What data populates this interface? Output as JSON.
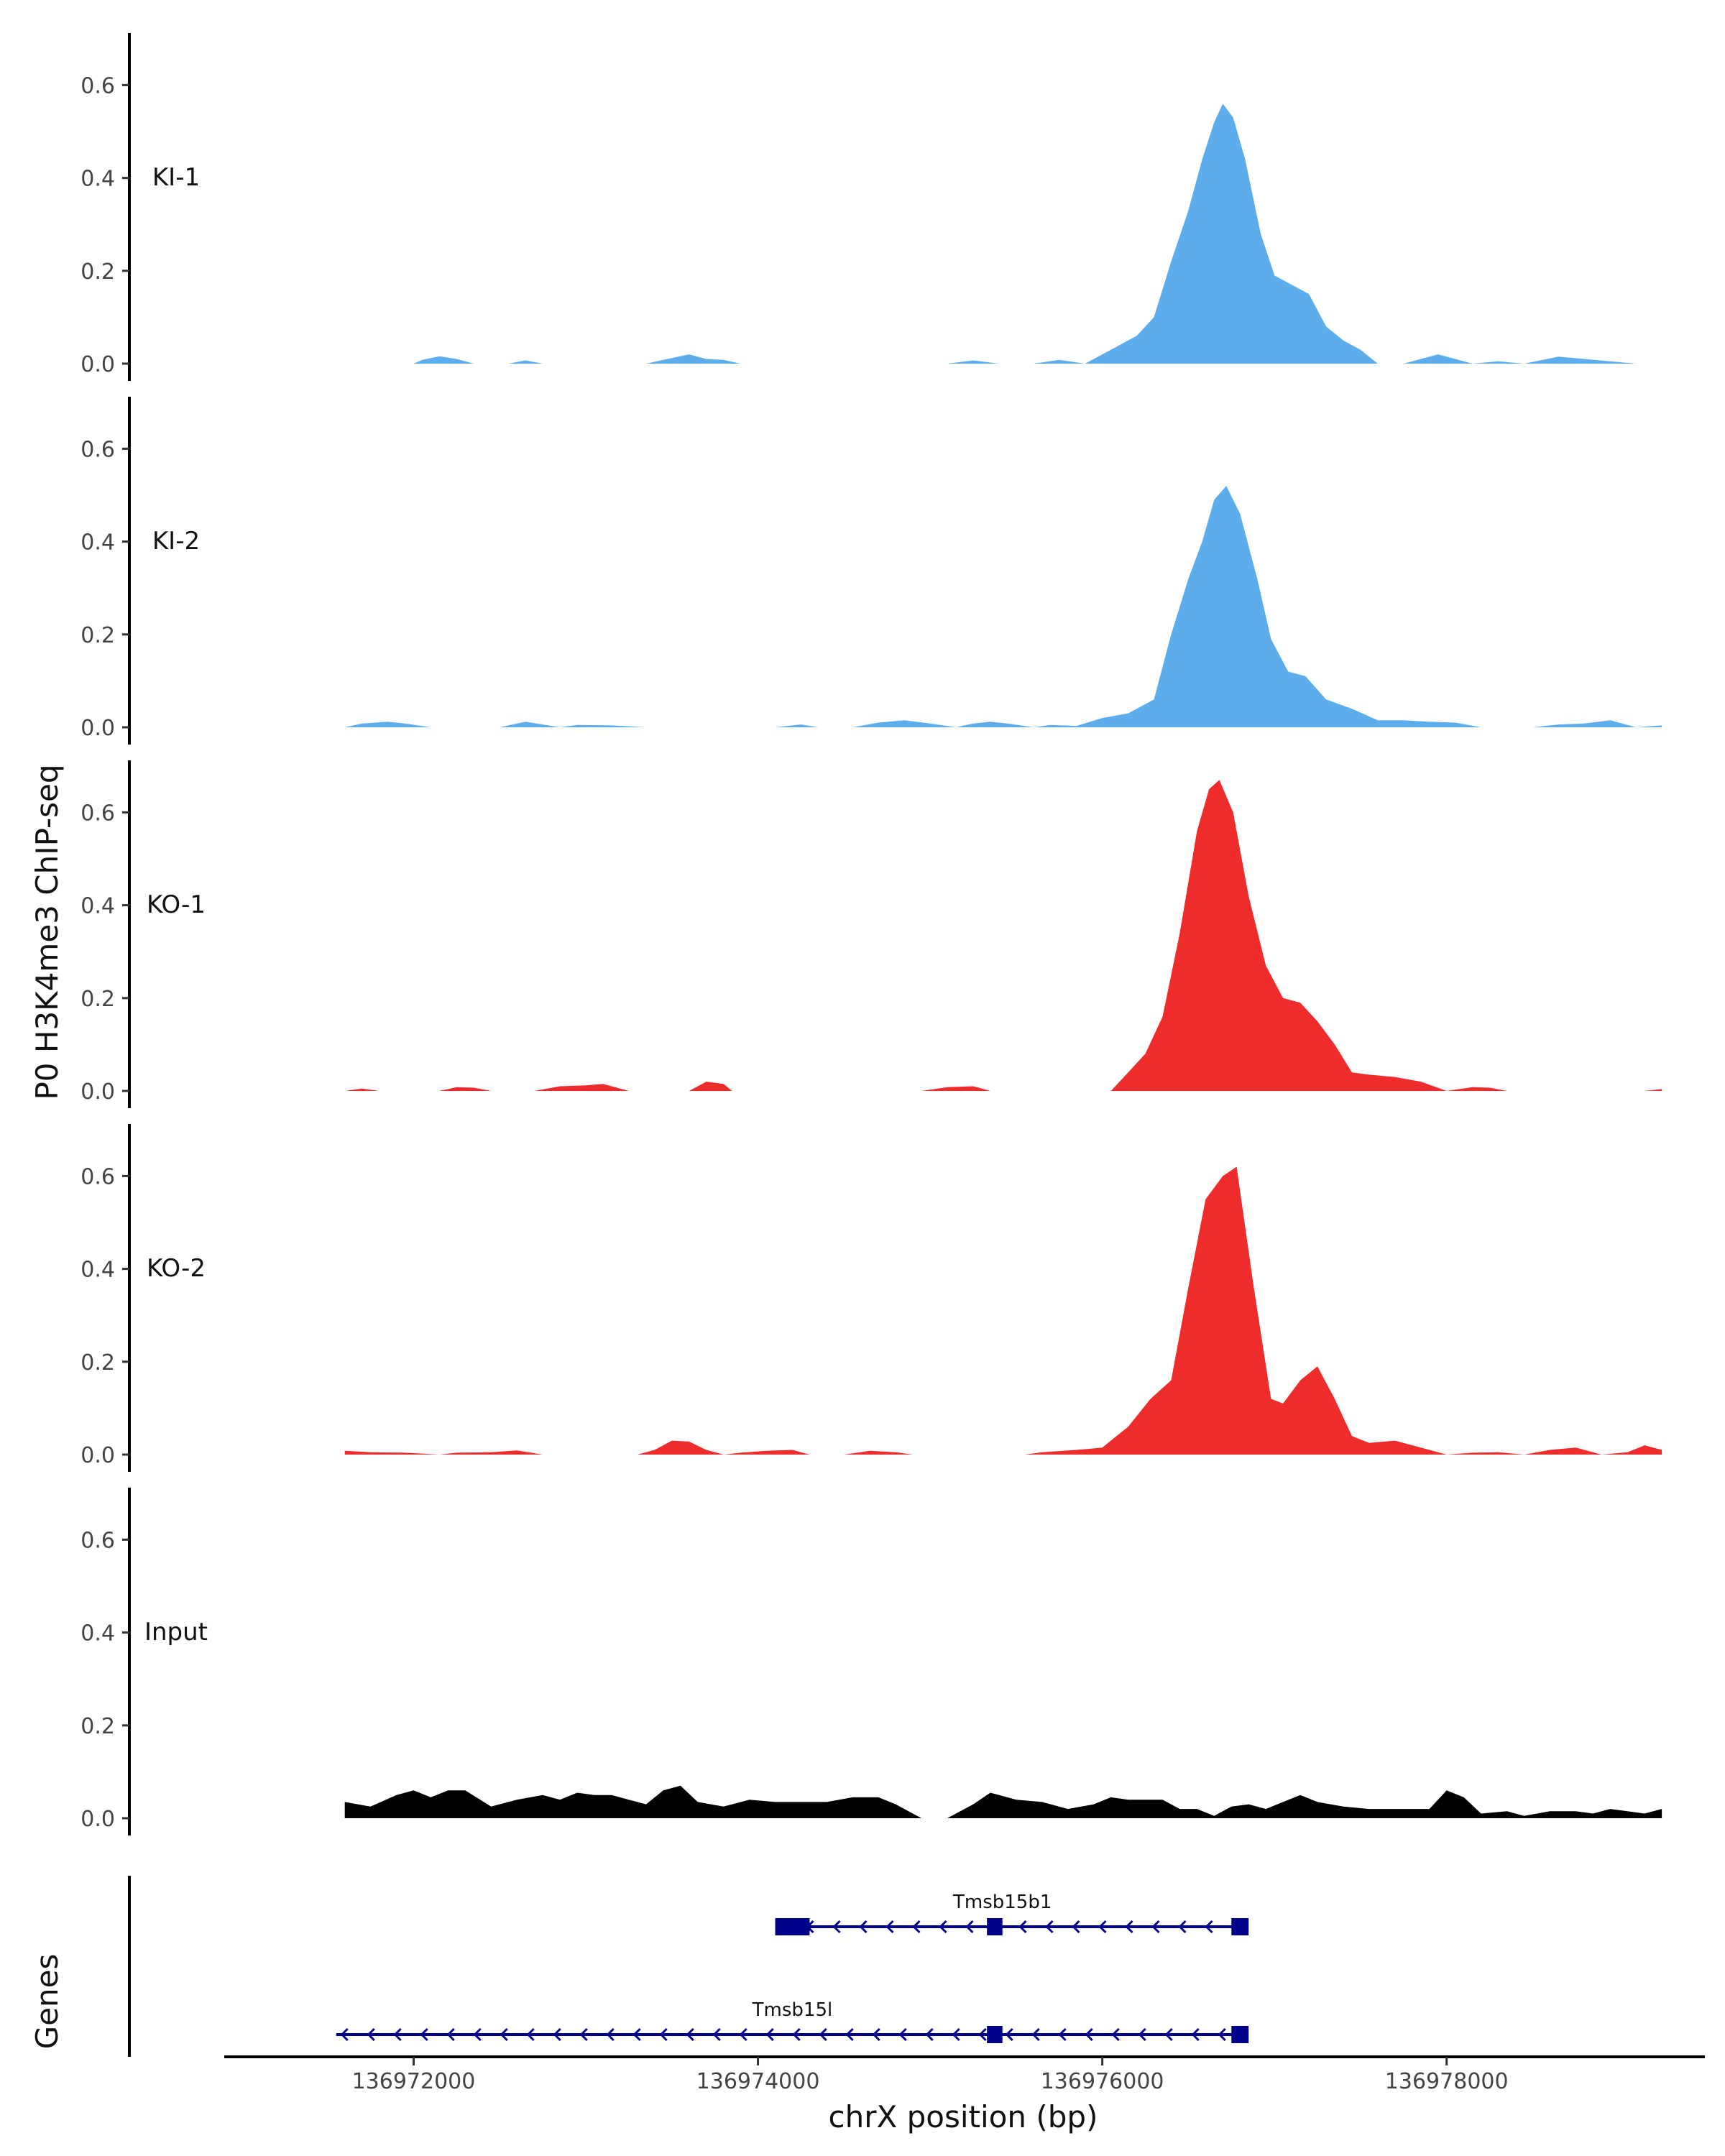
{
  "chart_data": {
    "type": "area",
    "ylabel": "P0 H3K4me3 ChIP-seq",
    "xlabel": "chrX position (bp)",
    "xlim": [
      136970900,
      136979500
    ],
    "ylim": [
      0,
      0.7
    ],
    "yticks": [
      0.0,
      0.2,
      0.4,
      0.6
    ],
    "ytick_labels": [
      "0.0",
      "0.2",
      "0.4",
      "0.6"
    ],
    "xticks": [
      136972000,
      136974000,
      136976000,
      136978000
    ],
    "xtick_labels": [
      "136972000",
      "136974000",
      "136976000",
      "136978000"
    ],
    "tracks": [
      {
        "name": "KI-1",
        "color": "#5DADEC",
        "points": [
          [
            136972000,
            0.0
          ],
          [
            136972050,
            0.008
          ],
          [
            136972150,
            0.016
          ],
          [
            136972250,
            0.01
          ],
          [
            136972350,
            0.0
          ],
          [
            136972550,
            0.0
          ],
          [
            136972650,
            0.007
          ],
          [
            136972750,
            0.0
          ],
          [
            136973350,
            0.0
          ],
          [
            136973450,
            0.008
          ],
          [
            136973600,
            0.02
          ],
          [
            136973700,
            0.01
          ],
          [
            136973800,
            0.008
          ],
          [
            136973900,
            0.0
          ],
          [
            136974350,
            0.0
          ],
          [
            136975100,
            0.0
          ],
          [
            136975250,
            0.007
          ],
          [
            136975400,
            0.0
          ],
          [
            136975600,
            0.0
          ],
          [
            136975750,
            0.008
          ],
          [
            136975900,
            0.0
          ],
          [
            136976000,
            0.02
          ],
          [
            136976200,
            0.06
          ],
          [
            136976300,
            0.1
          ],
          [
            136976400,
            0.22
          ],
          [
            136976500,
            0.33
          ],
          [
            136976580,
            0.44
          ],
          [
            136976650,
            0.52
          ],
          [
            136976700,
            0.56
          ],
          [
            136976760,
            0.53
          ],
          [
            136976830,
            0.44
          ],
          [
            136976920,
            0.28
          ],
          [
            136977000,
            0.19
          ],
          [
            136977100,
            0.17
          ],
          [
            136977200,
            0.15
          ],
          [
            136977300,
            0.08
          ],
          [
            136977400,
            0.05
          ],
          [
            136977500,
            0.03
          ],
          [
            136977600,
            0.0
          ],
          [
            136977750,
            0.0
          ],
          [
            136977850,
            0.01
          ],
          [
            136977950,
            0.02
          ],
          [
            136978050,
            0.01
          ],
          [
            136978150,
            0.0
          ],
          [
            136978300,
            0.005
          ],
          [
            136978450,
            0.0
          ],
          [
            136978650,
            0.015
          ],
          [
            136978800,
            0.01
          ],
          [
            136978950,
            0.005
          ],
          [
            136979100,
            0.0
          ]
        ]
      },
      {
        "name": "KI-2",
        "color": "#5DADEC",
        "points": [
          [
            136971600,
            0.0
          ],
          [
            136971700,
            0.008
          ],
          [
            136971850,
            0.012
          ],
          [
            136971950,
            0.008
          ],
          [
            136972100,
            0.0
          ],
          [
            136972500,
            0.0
          ],
          [
            136972650,
            0.012
          ],
          [
            136972750,
            0.006
          ],
          [
            136972850,
            0.0
          ],
          [
            136972950,
            0.005
          ],
          [
            136973150,
            0.004
          ],
          [
            136973350,
            0.0
          ],
          [
            136973900,
            0.0
          ],
          [
            136974100,
            0.0
          ],
          [
            136974250,
            0.006
          ],
          [
            136974350,
            0.0
          ],
          [
            136974550,
            0.0
          ],
          [
            136974700,
            0.01
          ],
          [
            136974850,
            0.015
          ],
          [
            136975000,
            0.008
          ],
          [
            136975150,
            0.0
          ],
          [
            136975250,
            0.008
          ],
          [
            136975350,
            0.012
          ],
          [
            136975450,
            0.008
          ],
          [
            136975600,
            0.0
          ],
          [
            136975700,
            0.005
          ],
          [
            136975850,
            0.003
          ],
          [
            136976000,
            0.02
          ],
          [
            136976150,
            0.03
          ],
          [
            136976300,
            0.06
          ],
          [
            136976400,
            0.2
          ],
          [
            136976500,
            0.32
          ],
          [
            136976580,
            0.4
          ],
          [
            136976650,
            0.49
          ],
          [
            136976720,
            0.52
          ],
          [
            136976800,
            0.46
          ],
          [
            136976900,
            0.32
          ],
          [
            136976980,
            0.19
          ],
          [
            136977080,
            0.12
          ],
          [
            136977180,
            0.11
          ],
          [
            136977300,
            0.06
          ],
          [
            136977450,
            0.04
          ],
          [
            136977600,
            0.015
          ],
          [
            136977750,
            0.015
          ],
          [
            136977900,
            0.012
          ],
          [
            136978050,
            0.01
          ],
          [
            136978200,
            0.0
          ],
          [
            136978500,
            0.0
          ],
          [
            136978650,
            0.006
          ],
          [
            136978800,
            0.008
          ],
          [
            136978950,
            0.015
          ],
          [
            136979100,
            0.0
          ],
          [
            136979250,
            0.004
          ]
        ]
      },
      {
        "name": "KO-1",
        "color": "#EE2C2C",
        "points": [
          [
            136971600,
            0.0
          ],
          [
            136971700,
            0.005
          ],
          [
            136971800,
            0.0
          ],
          [
            136972150,
            0.0
          ],
          [
            136972250,
            0.008
          ],
          [
            136972350,
            0.007
          ],
          [
            136972450,
            0.0
          ],
          [
            136972700,
            0.0
          ],
          [
            136972850,
            0.01
          ],
          [
            136973000,
            0.012
          ],
          [
            136973100,
            0.015
          ],
          [
            136973250,
            0.0
          ],
          [
            136973600,
            0.0
          ],
          [
            136973700,
            0.02
          ],
          [
            136973800,
            0.015
          ],
          [
            136973850,
            0.0
          ],
          [
            136974950,
            0.0
          ],
          [
            136975100,
            0.008
          ],
          [
            136975250,
            0.01
          ],
          [
            136975350,
            0.0
          ],
          [
            136976050,
            0.0
          ],
          [
            136976150,
            0.04
          ],
          [
            136976250,
            0.08
          ],
          [
            136976350,
            0.16
          ],
          [
            136976450,
            0.34
          ],
          [
            136976550,
            0.56
          ],
          [
            136976620,
            0.65
          ],
          [
            136976680,
            0.67
          ],
          [
            136976760,
            0.6
          ],
          [
            136976850,
            0.42
          ],
          [
            136976950,
            0.27
          ],
          [
            136977050,
            0.2
          ],
          [
            136977150,
            0.19
          ],
          [
            136977250,
            0.15
          ],
          [
            136977350,
            0.1
          ],
          [
            136977450,
            0.04
          ],
          [
            136977550,
            0.035
          ],
          [
            136977700,
            0.03
          ],
          [
            136977850,
            0.02
          ],
          [
            136978000,
            0.0
          ],
          [
            136978150,
            0.008
          ],
          [
            136978250,
            0.007
          ],
          [
            136978350,
            0.0
          ],
          [
            136979150,
            0.0
          ],
          [
            136979250,
            0.004
          ]
        ]
      },
      {
        "name": "KO-2",
        "color": "#EE2C2C",
        "points": [
          [
            136971600,
            0.008
          ],
          [
            136971750,
            0.005
          ],
          [
            136971950,
            0.004
          ],
          [
            136972150,
            0.0
          ],
          [
            136972250,
            0.004
          ],
          [
            136972450,
            0.005
          ],
          [
            136972600,
            0.009
          ],
          [
            136972750,
            0.0
          ],
          [
            136973300,
            0.0
          ],
          [
            136973400,
            0.01
          ],
          [
            136973500,
            0.03
          ],
          [
            136973600,
            0.028
          ],
          [
            136973700,
            0.01
          ],
          [
            136973800,
            0.0
          ],
          [
            136973900,
            0.004
          ],
          [
            136974050,
            0.008
          ],
          [
            136974200,
            0.01
          ],
          [
            136974300,
            0.0
          ],
          [
            136974500,
            0.0
          ],
          [
            136974650,
            0.008
          ],
          [
            136974800,
            0.005
          ],
          [
            136974900,
            0.0
          ],
          [
            136975550,
            0.0
          ],
          [
            136975650,
            0.005
          ],
          [
            136975850,
            0.01
          ],
          [
            136976000,
            0.015
          ],
          [
            136976150,
            0.06
          ],
          [
            136976280,
            0.12
          ],
          [
            136976400,
            0.16
          ],
          [
            136976500,
            0.36
          ],
          [
            136976600,
            0.55
          ],
          [
            136976700,
            0.6
          ],
          [
            136976780,
            0.62
          ],
          [
            136976880,
            0.36
          ],
          [
            136976980,
            0.12
          ],
          [
            136977050,
            0.11
          ],
          [
            136977150,
            0.16
          ],
          [
            136977250,
            0.19
          ],
          [
            136977350,
            0.12
          ],
          [
            136977450,
            0.04
          ],
          [
            136977550,
            0.025
          ],
          [
            136977700,
            0.03
          ],
          [
            136977850,
            0.015
          ],
          [
            136978000,
            0.0
          ],
          [
            136978150,
            0.004
          ],
          [
            136978300,
            0.005
          ],
          [
            136978450,
            0.0
          ],
          [
            136978600,
            0.01
          ],
          [
            136978750,
            0.015
          ],
          [
            136978900,
            0.0
          ],
          [
            136979050,
            0.005
          ],
          [
            136979150,
            0.02
          ],
          [
            136979250,
            0.01
          ]
        ]
      },
      {
        "name": "Input",
        "color": "#000000",
        "points": [
          [
            136971600,
            0.035
          ],
          [
            136971750,
            0.025
          ],
          [
            136971900,
            0.05
          ],
          [
            136972000,
            0.06
          ],
          [
            136972100,
            0.045
          ],
          [
            136972200,
            0.06
          ],
          [
            136972300,
            0.06
          ],
          [
            136972450,
            0.025
          ],
          [
            136972600,
            0.04
          ],
          [
            136972750,
            0.05
          ],
          [
            136972850,
            0.04
          ],
          [
            136972950,
            0.055
          ],
          [
            136973050,
            0.05
          ],
          [
            136973150,
            0.05
          ],
          [
            136973250,
            0.04
          ],
          [
            136973350,
            0.03
          ],
          [
            136973450,
            0.06
          ],
          [
            136973550,
            0.07
          ],
          [
            136973650,
            0.035
          ],
          [
            136973800,
            0.025
          ],
          [
            136973950,
            0.04
          ],
          [
            136974100,
            0.035
          ],
          [
            136974250,
            0.035
          ],
          [
            136974400,
            0.035
          ],
          [
            136974550,
            0.045
          ],
          [
            136974700,
            0.045
          ],
          [
            136974800,
            0.03
          ],
          [
            136974950,
            0.0
          ],
          [
            136975100,
            0.0
          ],
          [
            136975250,
            0.03
          ],
          [
            136975350,
            0.055
          ],
          [
            136975500,
            0.04
          ],
          [
            136975650,
            0.035
          ],
          [
            136975800,
            0.02
          ],
          [
            136975950,
            0.03
          ],
          [
            136976050,
            0.045
          ],
          [
            136976150,
            0.04
          ],
          [
            136976250,
            0.04
          ],
          [
            136976350,
            0.04
          ],
          [
            136976450,
            0.02
          ],
          [
            136976550,
            0.02
          ],
          [
            136976650,
            0.005
          ],
          [
            136976750,
            0.025
          ],
          [
            136976850,
            0.03
          ],
          [
            136976950,
            0.02
          ],
          [
            136977050,
            0.035
          ],
          [
            136977150,
            0.05
          ],
          [
            136977250,
            0.035
          ],
          [
            136977400,
            0.025
          ],
          [
            136977550,
            0.02
          ],
          [
            136977700,
            0.02
          ],
          [
            136977900,
            0.02
          ],
          [
            136978000,
            0.06
          ],
          [
            136978100,
            0.045
          ],
          [
            136978200,
            0.01
          ],
          [
            136978350,
            0.015
          ],
          [
            136978450,
            0.005
          ],
          [
            136978600,
            0.015
          ],
          [
            136978750,
            0.015
          ],
          [
            136978850,
            0.01
          ],
          [
            136978950,
            0.02
          ],
          [
            136979050,
            0.015
          ],
          [
            136979150,
            0.01
          ],
          [
            136979250,
            0.02
          ]
        ]
      }
    ],
    "genes": {
      "title": "Genes",
      "color": "#00008B",
      "items": [
        {
          "name": "Tmsb15b1",
          "start": 136974100,
          "end": 136976830,
          "strand": "-",
          "exons": [
            [
              136974100,
              136974300
            ],
            [
              136975330,
              136975420
            ],
            [
              136976750,
              136976850
            ]
          ]
        },
        {
          "name": "Tmsb15l",
          "start": 136971550,
          "end": 136976830,
          "strand": "-",
          "exons": [
            [
              136975330,
              136975420
            ],
            [
              136976750,
              136976850
            ]
          ]
        }
      ]
    }
  }
}
